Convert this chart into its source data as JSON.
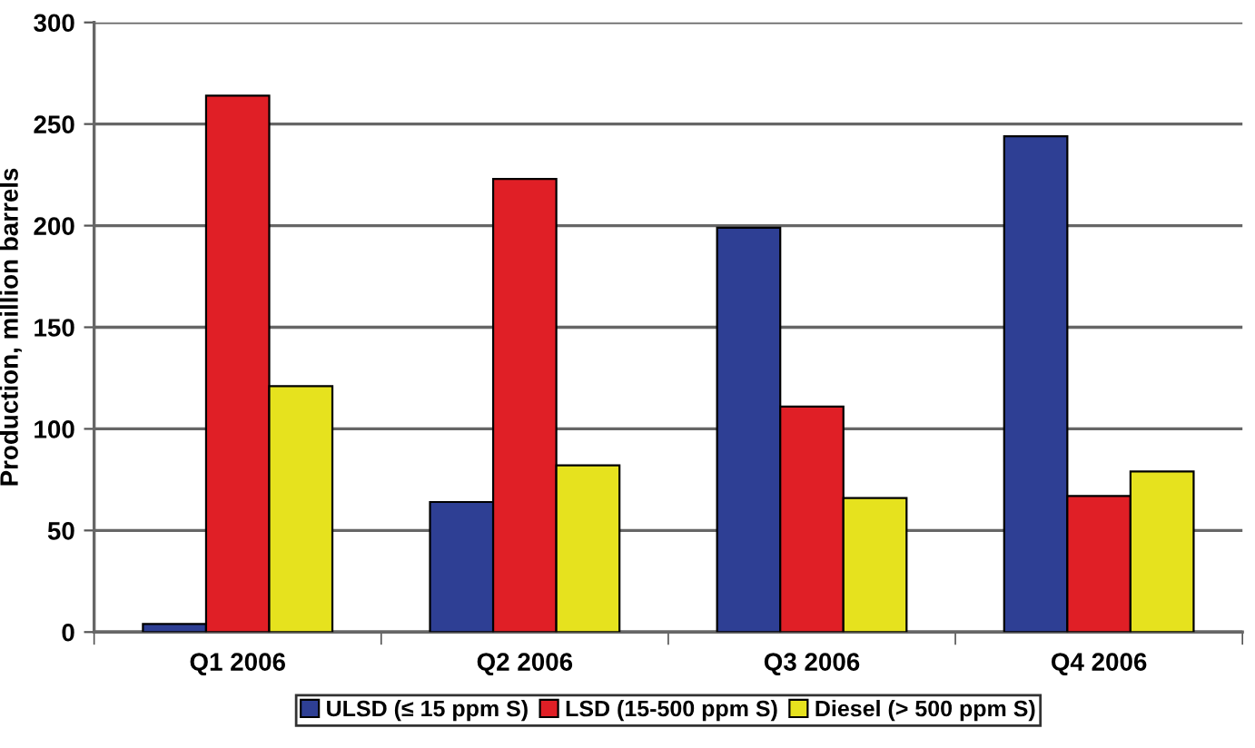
{
  "chart_data": {
    "type": "bar",
    "ylabel": "Production, million barrels",
    "categories": [
      "Q1 2006",
      "Q2 2006",
      "Q3 2006",
      "Q4 2006"
    ],
    "series": [
      {
        "name": "ULSD (≤ 15 ppm S)",
        "color": "#2e3f94",
        "values": [
          4,
          64,
          199,
          244
        ]
      },
      {
        "name": "LSD (15-500 ppm S)",
        "color": "#e01f26",
        "values": [
          264,
          223,
          111,
          67
        ]
      },
      {
        "name": "Diesel (> 500 ppm S)",
        "color": "#e6e21e",
        "values": [
          121,
          82,
          66,
          79
        ]
      }
    ],
    "ylim": [
      0,
      300
    ],
    "yticks": [
      0,
      50,
      100,
      150,
      200,
      250,
      300
    ],
    "grid": "y",
    "legend": "bottom"
  }
}
